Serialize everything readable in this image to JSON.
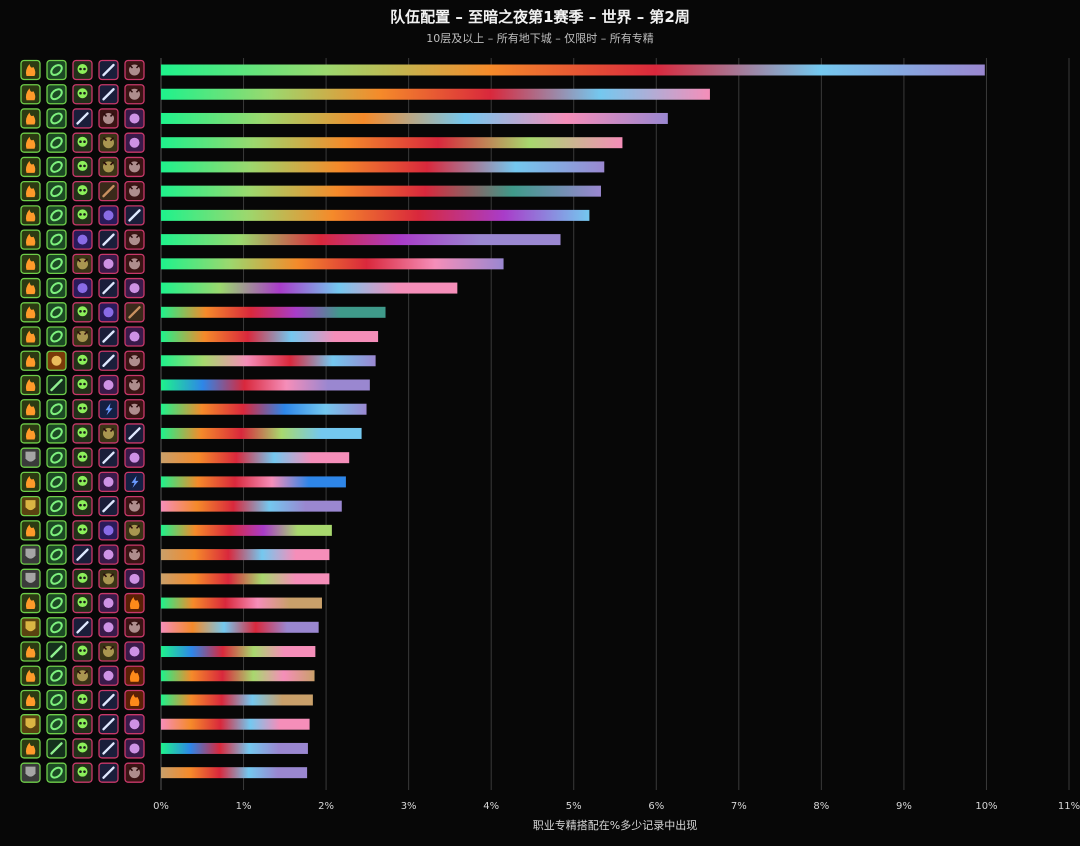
{
  "title": "队伍配置 – 至暗之夜第1赛季 – 世界 – 第2周",
  "subtitle": "10层及以上 – 所有地下城 – 仅限时 – 所有专精",
  "colors": {
    "background": "#070707",
    "gridline": "#3a3a3a",
    "text": "#d6d6d6"
  },
  "chart_data": {
    "type": "bar",
    "orientation": "horizontal",
    "title": "队伍配置 – 至暗之夜第1赛季 – 世界 – 第2周",
    "subtitle": "10层及以上 – 所有地下城 – 仅限时 – 所有专精",
    "xlabel": "职业专精搭配在%多少记录中出现",
    "xlim": [
      0,
      11
    ],
    "xticks": [
      "0%",
      "1%",
      "2%",
      "3%",
      "4%",
      "5%",
      "6%",
      "7%",
      "8%",
      "9%",
      "10%",
      "11%"
    ],
    "grid": true,
    "values": [
      9.98,
      6.65,
      6.14,
      5.59,
      5.37,
      5.33,
      5.19,
      4.84,
      4.15,
      3.59,
      2.72,
      2.63,
      2.6,
      2.53,
      2.49,
      2.43,
      2.28,
      2.24,
      2.19,
      2.07,
      2.04,
      2.04,
      1.95,
      1.91,
      1.87,
      1.86,
      1.84,
      1.8,
      1.78,
      1.77
    ],
    "bar_colors": [
      [
        "#1ef28c",
        "#9bd86e",
        "#f58a2a",
        "#d9283c",
        "#74c8ef",
        "#9a87d0"
      ],
      [
        "#1ef28c",
        "#9bd86e",
        "#f58a2a",
        "#d9283c",
        "#74c8ef",
        "#f58eb9"
      ],
      [
        "#1ef28c",
        "#9bd86e",
        "#f58a2a",
        "#74c8ef",
        "#f58eb9",
        "#9a87d0"
      ],
      [
        "#1ef28c",
        "#9bd86e",
        "#f58a2a",
        "#d9283c",
        "#a8d86e",
        "#f58eb9"
      ],
      [
        "#1ef28c",
        "#9bd86e",
        "#f58a2a",
        "#d9283c",
        "#74c8ef",
        "#9a87d0"
      ],
      [
        "#1ef28c",
        "#9bd86e",
        "#f58a2a",
        "#d9283c",
        "#3f9a8a",
        "#9a87d0"
      ],
      [
        "#1ef28c",
        "#9bd86e",
        "#f58a2a",
        "#d9283c",
        "#a93cc9",
        "#74c8ef"
      ],
      [
        "#1ef28c",
        "#9bd86e",
        "#d9283c",
        "#a93cc9",
        "#9a87d0",
        "#9a87d0"
      ],
      [
        "#1ef28c",
        "#9bd86e",
        "#f58a2a",
        "#d9283c",
        "#f58eb9",
        "#9a87d0"
      ],
      [
        "#1ef28c",
        "#9bd86e",
        "#a93cc9",
        "#74c8ef",
        "#f58eb9",
        "#f58eb9"
      ],
      [
        "#1ef28c",
        "#f58a2a",
        "#d9283c",
        "#a93cc9",
        "#3f9a8a",
        "#3f9a8a"
      ],
      [
        "#1ef28c",
        "#f58a2a",
        "#d9283c",
        "#74c8ef",
        "#f58eb9",
        "#f58eb9"
      ],
      [
        "#1ef28c",
        "#a8d86e",
        "#f58eb9",
        "#d9283c",
        "#74c8ef",
        "#9a87d0"
      ],
      [
        "#1ef28c",
        "#2e86e8",
        "#d9283c",
        "#f58eb9",
        "#9a87d0",
        "#9a87d0"
      ],
      [
        "#1ef28c",
        "#f58a2a",
        "#d9283c",
        "#2e86e8",
        "#74c8ef",
        "#9a87d0"
      ],
      [
        "#1ef28c",
        "#f58a2a",
        "#d9283c",
        "#a8d86e",
        "#74c8ef",
        "#74c8ef"
      ],
      [
        "#c9a06a",
        "#f58a2a",
        "#d9283c",
        "#74c8ef",
        "#f58eb9",
        "#f58eb9"
      ],
      [
        "#1ef28c",
        "#f58a2a",
        "#d9283c",
        "#f58eb9",
        "#2e86e8",
        "#2e86e8"
      ],
      [
        "#f58eb9",
        "#f58a2a",
        "#d9283c",
        "#74c8ef",
        "#9a87d0",
        "#9a87d0"
      ],
      [
        "#1ef28c",
        "#f58a2a",
        "#d9283c",
        "#a93cc9",
        "#a8d86e",
        "#a8d86e"
      ],
      [
        "#c9a06a",
        "#f58a2a",
        "#d9283c",
        "#74c8ef",
        "#f58eb9",
        "#f58eb9"
      ],
      [
        "#c9a06a",
        "#f58a2a",
        "#d9283c",
        "#a8d86e",
        "#f58eb9",
        "#f58eb9"
      ],
      [
        "#1ef28c",
        "#f58a2a",
        "#d9283c",
        "#f58eb9",
        "#c9a06a",
        "#c9a06a"
      ],
      [
        "#f58eb9",
        "#f58a2a",
        "#74c8ef",
        "#d9283c",
        "#9a87d0",
        "#9a87d0"
      ],
      [
        "#1ef28c",
        "#2e86e8",
        "#d9283c",
        "#a8d86e",
        "#f58eb9",
        "#f58eb9"
      ],
      [
        "#1ef28c",
        "#f58a2a",
        "#d9283c",
        "#a8d86e",
        "#f58eb9",
        "#c9a06a"
      ],
      [
        "#1ef28c",
        "#f58a2a",
        "#d9283c",
        "#74c8ef",
        "#c9a06a",
        "#c9a06a"
      ],
      [
        "#f58eb9",
        "#f58a2a",
        "#d9283c",
        "#74c8ef",
        "#f58eb9",
        "#f58eb9"
      ],
      [
        "#1ef28c",
        "#2e86e8",
        "#d9283c",
        "#74c8ef",
        "#9a87d0",
        "#9a87d0"
      ],
      [
        "#c9a06a",
        "#f58a2a",
        "#d9283c",
        "#74c8ef",
        "#9a87d0",
        "#9a87d0"
      ]
    ],
    "row_icons": [
      [
        "tank-druid-icon",
        "healer-shaman-icon",
        "dps-dk-icon",
        "dps-mage-icon",
        "dps-dh-icon"
      ],
      [
        "tank-druid-icon",
        "healer-shaman-icon",
        "dps-dk-icon",
        "dps-mage-icon",
        "dps-dh-icon"
      ],
      [
        "tank-druid-icon",
        "healer-shaman-icon",
        "dps-mage-icon",
        "dps-dh-icon",
        "dps-warlock-icon"
      ],
      [
        "tank-druid-icon",
        "healer-shaman-icon",
        "dps-dk-icon",
        "dps-hunter-icon",
        "dps-warlock-icon"
      ],
      [
        "tank-druid-icon",
        "healer-shaman-icon",
        "dps-dk-icon",
        "dps-hunter-icon",
        "dps-dh-icon"
      ],
      [
        "tank-druid-icon",
        "healer-shaman-icon",
        "dps-dk-icon",
        "dps-rogue-icon",
        "dps-dh-icon"
      ],
      [
        "tank-druid-icon",
        "healer-shaman-icon",
        "dps-dk-icon",
        "dps-priest-icon",
        "dps-mage-icon"
      ],
      [
        "tank-druid-icon",
        "healer-shaman-icon",
        "dps-priest-icon",
        "dps-mage-icon",
        "dps-dh-icon"
      ],
      [
        "tank-druid-icon",
        "healer-shaman-icon",
        "dps-hunter-icon",
        "dps-warlock-icon",
        "dps-dh-icon"
      ],
      [
        "tank-druid-icon",
        "healer-shaman-icon",
        "dps-priest-icon",
        "dps-mage-icon",
        "dps-warlock-icon"
      ],
      [
        "tank-druid-icon",
        "healer-shaman-icon",
        "dps-dk-icon",
        "dps-priest-icon",
        "dps-rogue-icon"
      ],
      [
        "tank-druid-icon",
        "healer-shaman-icon",
        "dps-hunter-icon",
        "dps-mage-icon",
        "dps-warlock-icon"
      ],
      [
        "tank-druid-icon",
        "healer-paladin-icon",
        "dps-dk-icon",
        "dps-mage-icon",
        "dps-dh-icon"
      ],
      [
        "tank-druid-icon",
        "healer-evoker-icon",
        "dps-dk-icon",
        "dps-warlock-icon",
        "dps-dh-icon"
      ],
      [
        "tank-druid-icon",
        "healer-shaman-icon",
        "dps-dk-icon",
        "dps-shaman-icon",
        "dps-dh-icon"
      ],
      [
        "tank-druid-icon",
        "healer-shaman-icon",
        "dps-dk-icon",
        "dps-hunter-icon",
        "dps-mage-icon"
      ],
      [
        "tank-warrior-icon",
        "healer-shaman-icon",
        "dps-dk-icon",
        "dps-mage-icon",
        "dps-warlock-icon"
      ],
      [
        "tank-druid-icon",
        "healer-shaman-icon",
        "dps-dk-icon",
        "dps-warlock-icon",
        "dps-shaman-icon"
      ],
      [
        "tank-paladin-icon",
        "healer-shaman-icon",
        "dps-dk-icon",
        "dps-mage-icon",
        "dps-dh-icon"
      ],
      [
        "tank-druid-icon",
        "healer-shaman-icon",
        "dps-dk-icon",
        "dps-priest-icon",
        "dps-hunter-icon"
      ],
      [
        "tank-warrior-icon",
        "healer-shaman-icon",
        "dps-mage-icon",
        "dps-warlock-icon",
        "dps-dh-icon"
      ],
      [
        "tank-warrior-icon",
        "healer-shaman-icon",
        "dps-dk-icon",
        "dps-hunter-icon",
        "dps-warlock-icon"
      ],
      [
        "tank-druid-icon",
        "healer-shaman-icon",
        "dps-dk-icon",
        "dps-warlock-icon",
        "dps-warrior-icon"
      ],
      [
        "tank-paladin-icon",
        "healer-shaman-icon",
        "dps-mage-icon",
        "dps-warlock-icon",
        "dps-dh-icon"
      ],
      [
        "tank-druid-icon",
        "healer-evoker-icon",
        "dps-dk-icon",
        "dps-hunter-icon",
        "dps-warlock-icon"
      ],
      [
        "tank-druid-icon",
        "healer-shaman-icon",
        "dps-hunter-icon",
        "dps-warlock-icon",
        "dps-warrior-icon"
      ],
      [
        "tank-druid-icon",
        "healer-shaman-icon",
        "dps-dk-icon",
        "dps-mage-icon",
        "dps-warrior-icon"
      ],
      [
        "tank-paladin-icon",
        "healer-shaman-icon",
        "dps-dk-icon",
        "dps-mage-icon",
        "dps-warlock-icon"
      ],
      [
        "tank-druid-icon",
        "healer-evoker-icon",
        "dps-dk-icon",
        "dps-mage-icon",
        "dps-warlock-icon"
      ],
      [
        "tank-warrior-icon",
        "healer-shaman-icon",
        "dps-dk-icon",
        "dps-mage-icon",
        "dps-dh-icon"
      ]
    ]
  }
}
